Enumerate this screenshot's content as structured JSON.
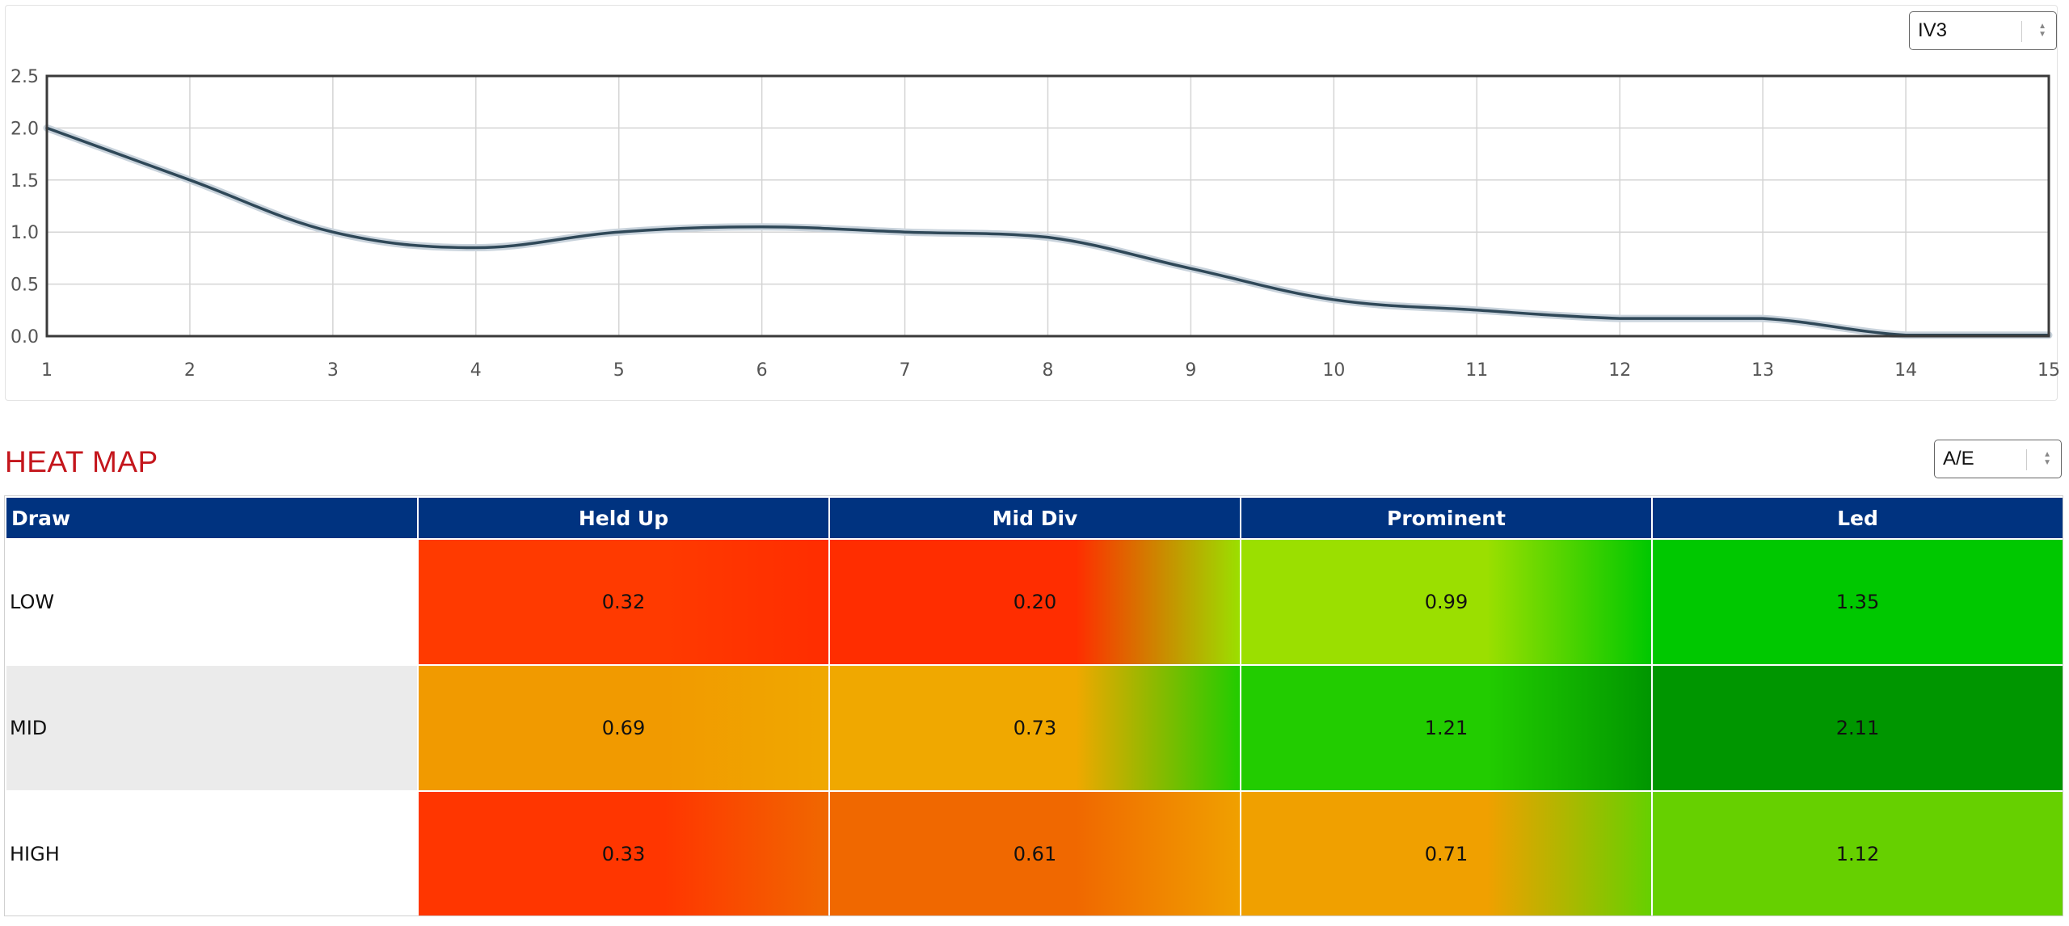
{
  "chart_selector": {
    "value": "IV3"
  },
  "heatmap_selector": {
    "value": "A/E"
  },
  "chart_data": {
    "type": "line",
    "title": "",
    "xlabel": "",
    "ylabel": "",
    "x": [
      1,
      2,
      3,
      4,
      5,
      6,
      7,
      8,
      9,
      10,
      11,
      12,
      13,
      14,
      15
    ],
    "series": [
      {
        "name": "IV3",
        "values": [
          2.0,
          1.5,
          1.0,
          0.85,
          1.0,
          1.05,
          1.0,
          0.95,
          0.65,
          0.35,
          0.25,
          0.17,
          0.17,
          0.01,
          0.01
        ]
      }
    ],
    "xlim": [
      1,
      15
    ],
    "ylim": [
      0,
      2.5
    ],
    "yticks": [
      "0.0",
      "0.5",
      "1.0",
      "1.5",
      "2.0",
      "2.5"
    ],
    "xticks": [
      "1",
      "2",
      "3",
      "4",
      "5",
      "6",
      "7",
      "8",
      "9",
      "10",
      "11",
      "12",
      "13",
      "14",
      "15"
    ],
    "grid": true,
    "line_color": "#2f4858"
  },
  "heatmap": {
    "title": "HEAT MAP",
    "header_color": "#003380",
    "columns": [
      "Draw",
      "Held Up",
      "Mid Div",
      "Prominent",
      "Led"
    ],
    "rows": [
      {
        "label": "LOW",
        "values": [
          "0.32",
          "0.20",
          "0.99",
          "1.35"
        ],
        "colors": [
          "#ff3a00",
          "#ff2d00",
          "#9bdf00",
          "#00c800"
        ]
      },
      {
        "label": "MID",
        "values": [
          "0.69",
          "0.73",
          "1.21",
          "2.11"
        ],
        "colors": [
          "#f19a00",
          "#f0a800",
          "#22cc00",
          "#009600"
        ]
      },
      {
        "label": "HIGH",
        "values": [
          "0.33",
          "0.61",
          "0.71",
          "1.12"
        ],
        "colors": [
          "#ff3600",
          "#f06800",
          "#f0a000",
          "#66d000"
        ]
      }
    ]
  }
}
